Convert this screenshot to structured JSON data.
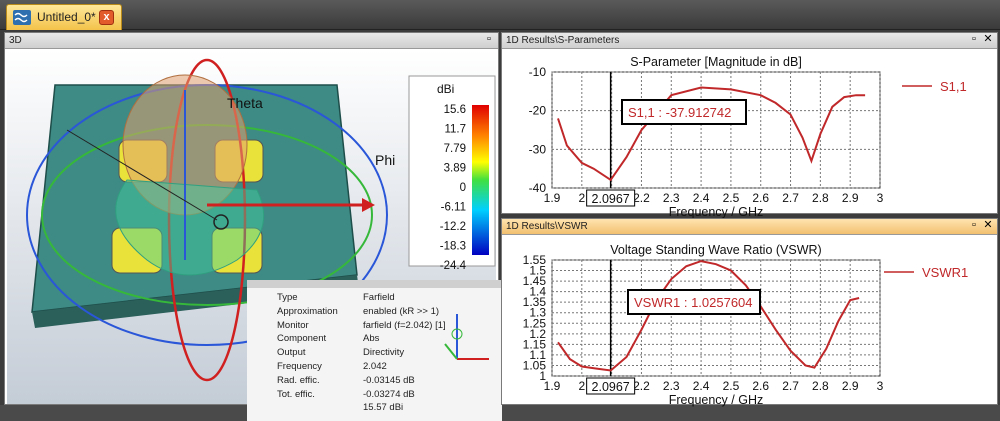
{
  "tab": {
    "label": "Untitled_0*",
    "close_glyph": "x"
  },
  "panel3d": {
    "title": "3D",
    "theta_label": "Theta",
    "phi_label": "Phi",
    "colorbar": {
      "unit": "dBi",
      "ticks": [
        "15.6",
        "11.7",
        "7.79",
        "3.89",
        "0",
        "-6.11",
        "-12.2",
        "-18.3",
        "-24.4"
      ]
    },
    "properties": [
      {
        "key": "Type",
        "value": "Farfield"
      },
      {
        "key": "Approximation",
        "value": "enabled (kR >> 1)"
      },
      {
        "key": "Monitor",
        "value": "farfield (f=2.042) [1]"
      },
      {
        "key": "Component",
        "value": "Abs"
      },
      {
        "key": "Output",
        "value": "Directivity"
      },
      {
        "key": "Frequency",
        "value": "2.042"
      },
      {
        "key": "Rad. effic.",
        "value": "-0.03145 dB"
      },
      {
        "key": "Tot. effic.",
        "value": "-0.03274 dB"
      },
      {
        "key": "",
        "value": "15.57 dBi"
      }
    ]
  },
  "panelS": {
    "title": "1D Results\\S-Parameters",
    "chart_title": "S-Parameter [Magnitude in dB]",
    "marker_label": "S1,1 : -37.912742",
    "marker_x_label": "2.0967",
    "legend": "S1,1"
  },
  "panelV": {
    "title": "1D Results\\VSWR",
    "chart_title": "Voltage Standing Wave Ratio (VSWR)",
    "marker_label": "VSWR1 : 1.0257604",
    "marker_x_label": "2.0967",
    "legend": "VSWR1"
  },
  "chart_data": [
    {
      "type": "line",
      "title": "S-Parameter [Magnitude in dB]",
      "xlabel": "Frequency / GHz",
      "ylabel": "",
      "xlim": [
        1.9,
        3.0
      ],
      "ylim": [
        -40,
        -10
      ],
      "xticks": [
        "1.9",
        "2",
        "2.1",
        "2.2",
        "2.3",
        "2.4",
        "2.5",
        "2.6",
        "2.7",
        "2.8",
        "2.9",
        "3"
      ],
      "yticks": [
        "-10",
        "-20",
        "-30",
        "-40"
      ],
      "grid": true,
      "legend_position": "right",
      "color": "#c0282a",
      "marker_x": 2.0967,
      "series": [
        {
          "name": "S1,1",
          "x": [
            1.92,
            1.95,
            2.0,
            2.04,
            2.0967,
            2.15,
            2.2,
            2.3,
            2.4,
            2.5,
            2.6,
            2.65,
            2.7,
            2.74,
            2.77,
            2.8,
            2.84,
            2.88,
            2.92,
            2.95
          ],
          "values": [
            -22,
            -29,
            -33.5,
            -35,
            -37.9,
            -32,
            -25,
            -16,
            -14,
            -14.5,
            -16,
            -18,
            -21,
            -27,
            -33,
            -26,
            -19,
            -16.5,
            -16,
            -16
          ]
        }
      ]
    },
    {
      "type": "line",
      "title": "Voltage Standing Wave Ratio (VSWR)",
      "xlabel": "Frequency / GHz",
      "ylabel": "",
      "xlim": [
        1.9,
        3.0
      ],
      "ylim": [
        1.0,
        1.55
      ],
      "xticks": [
        "1.9",
        "2",
        "2.1",
        "2.2",
        "2.3",
        "2.4",
        "2.5",
        "2.6",
        "2.7",
        "2.8",
        "2.9",
        "3"
      ],
      "yticks": [
        "1.55",
        "1.5",
        "1.45",
        "1.4",
        "1.35",
        "1.3",
        "1.25",
        "1.2",
        "1.15",
        "1.1",
        "1.05",
        "1"
      ],
      "grid": true,
      "legend_position": "right",
      "color": "#c0282a",
      "marker_x": 2.0967,
      "series": [
        {
          "name": "VSWR1",
          "x": [
            1.92,
            1.96,
            2.0,
            2.05,
            2.0967,
            2.15,
            2.2,
            2.25,
            2.3,
            2.35,
            2.4,
            2.45,
            2.5,
            2.55,
            2.6,
            2.65,
            2.7,
            2.75,
            2.78,
            2.82,
            2.86,
            2.9,
            2.93
          ],
          "values": [
            1.16,
            1.08,
            1.045,
            1.035,
            1.026,
            1.09,
            1.22,
            1.36,
            1.46,
            1.52,
            1.545,
            1.53,
            1.5,
            1.43,
            1.33,
            1.22,
            1.12,
            1.05,
            1.04,
            1.13,
            1.26,
            1.36,
            1.37
          ]
        }
      ]
    }
  ]
}
